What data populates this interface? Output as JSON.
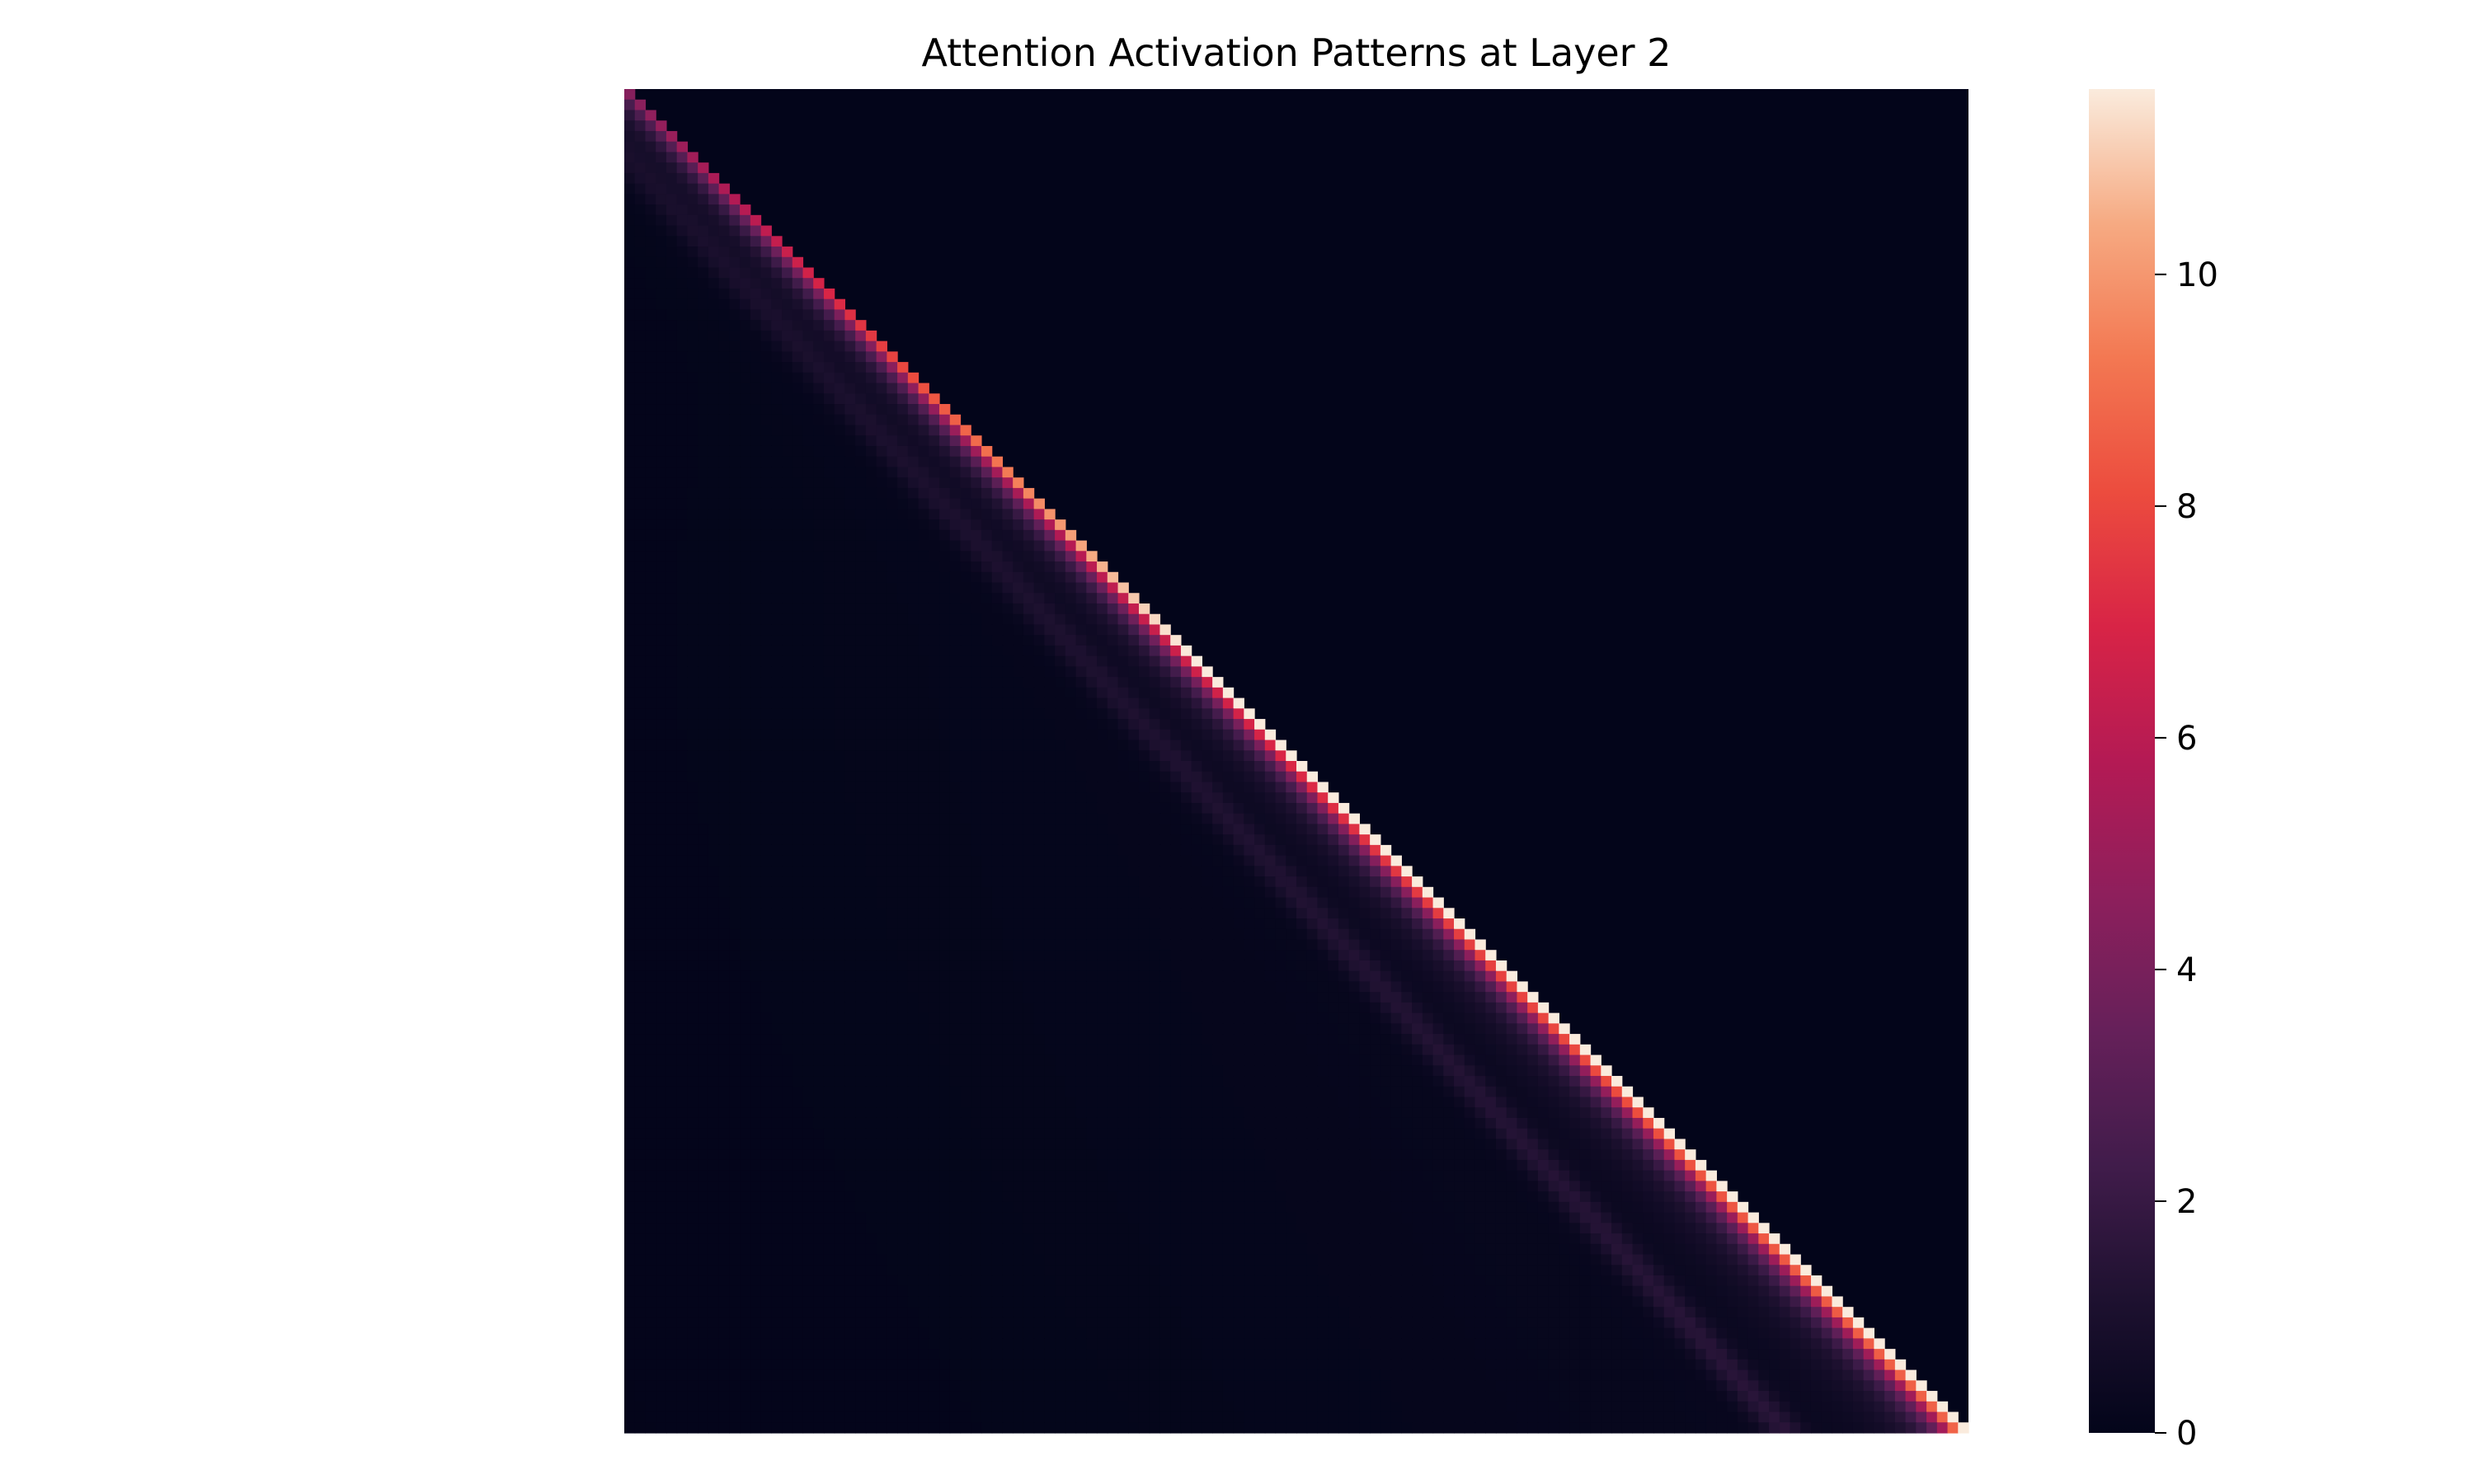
{
  "chart_data": {
    "type": "heatmap",
    "title": "Attention Activation Patterns at Layer 2",
    "xlabel": "",
    "ylabel": "",
    "x_ticks": [],
    "y_ticks": [],
    "matrix_description_size": 128,
    "structure": "lower-triangular (causal) attention matrix; upper triangle is 0",
    "diagonal_values": {
      "at_row_fraction": [
        0.0,
        0.2,
        0.4,
        0.6,
        0.8,
        1.0
      ],
      "values": [
        3.5,
        6.5,
        9.5,
        11,
        11.5,
        11.6
      ]
    },
    "off_diagonal_band": {
      "offset_fraction": 0.09,
      "peak_value": 1.3
    },
    "far_field_value": 0.3,
    "colorbar": {
      "colormap": "rocket",
      "vmin": 0,
      "vmax": 11.6,
      "ticks": [
        0,
        2,
        4,
        6,
        8,
        10
      ],
      "tick_labels": [
        "0",
        "2",
        "4",
        "6",
        "8",
        "10"
      ]
    },
    "grid": false,
    "legend": "none"
  }
}
